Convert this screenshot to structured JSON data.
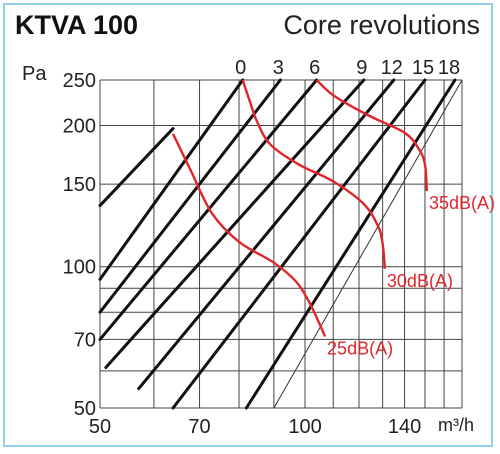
{
  "header": {
    "title": "KTVA 100",
    "subtitle": "Core revolutions"
  },
  "chart_data": {
    "type": "line",
    "title": "KTVA 100",
    "subtitle": "Core revolutions",
    "xlabel": "m³/h",
    "ylabel": "Pa",
    "x_scale": "log",
    "y_scale": "log",
    "xlim": [
      50,
      170
    ],
    "ylim": [
      50,
      250
    ],
    "grid": true,
    "x_ticks": [
      "50",
      "70",
      "100",
      "140"
    ],
    "x_gridlines": [
      50,
      60,
      70,
      80,
      90,
      100,
      110,
      120,
      130,
      140,
      150,
      160,
      170
    ],
    "y_ticks": [
      "50",
      "70",
      "100",
      "150",
      "200",
      "250"
    ],
    "y_gridlines": [
      50,
      60,
      70,
      80,
      90,
      100,
      150,
      200,
      250
    ],
    "core_revolution_labels": [
      "0",
      "3",
      "6",
      "9",
      "12",
      "15",
      "18"
    ],
    "core_revolution_lines": [
      {
        "name": "",
        "points": [
          [
            50,
            135
          ],
          [
            64,
            197
          ]
        ]
      },
      {
        "name": "0",
        "points": [
          [
            50,
            94
          ],
          [
            81,
            250
          ]
        ]
      },
      {
        "name": "3",
        "points": [
          [
            50,
            80
          ],
          [
            92,
            250
          ]
        ]
      },
      {
        "name": "6",
        "points": [
          [
            50,
            70
          ],
          [
            104,
            250
          ]
        ]
      },
      {
        "name": "9",
        "points": [
          [
            51,
            61
          ],
          [
            122,
            250
          ]
        ]
      },
      {
        "name": "12",
        "points": [
          [
            57,
            55
          ],
          [
            135,
            250
          ]
        ]
      },
      {
        "name": "15",
        "points": [
          [
            64,
            50
          ],
          [
            150,
            250
          ]
        ]
      },
      {
        "name": "18",
        "points": [
          [
            82,
            50
          ],
          [
            166,
            250
          ]
        ]
      }
    ],
    "limit_line": {
      "points": [
        [
          90,
          50
        ],
        [
          170,
          250
        ]
      ]
    },
    "series": [
      {
        "name": "25dB(A)",
        "color": "#e0262c",
        "points": [
          [
            64,
            192
          ],
          [
            68,
            160
          ],
          [
            73,
            130
          ],
          [
            80,
            113
          ],
          [
            90,
            102
          ],
          [
            97,
            93
          ],
          [
            101,
            85
          ],
          [
            104,
            78
          ],
          [
            107,
            71
          ]
        ]
      },
      {
        "name": "30dB(A)",
        "color": "#e0262c",
        "points": [
          [
            81,
            250
          ],
          [
            83,
            225
          ],
          [
            85,
            204
          ],
          [
            89,
            182
          ],
          [
            98,
            165
          ],
          [
            110,
            152
          ],
          [
            122,
            136
          ],
          [
            128,
            122
          ],
          [
            130,
            112
          ],
          [
            131,
            99
          ]
        ]
      },
      {
        "name": "35dB(A)",
        "color": "#e0262c",
        "points": [
          [
            104,
            250
          ],
          [
            110,
            232
          ],
          [
            124,
            210
          ],
          [
            140,
            193
          ],
          [
            147,
            178
          ],
          [
            150,
            165
          ],
          [
            151,
            145
          ]
        ]
      }
    ],
    "annotations": [
      {
        "text": "35dB(A)",
        "at": [
          151,
          145
        ]
      },
      {
        "text": "30dB(A)",
        "at": [
          131,
          99
        ]
      },
      {
        "text": "25dB(A)",
        "at": [
          107,
          71
        ]
      }
    ]
  }
}
